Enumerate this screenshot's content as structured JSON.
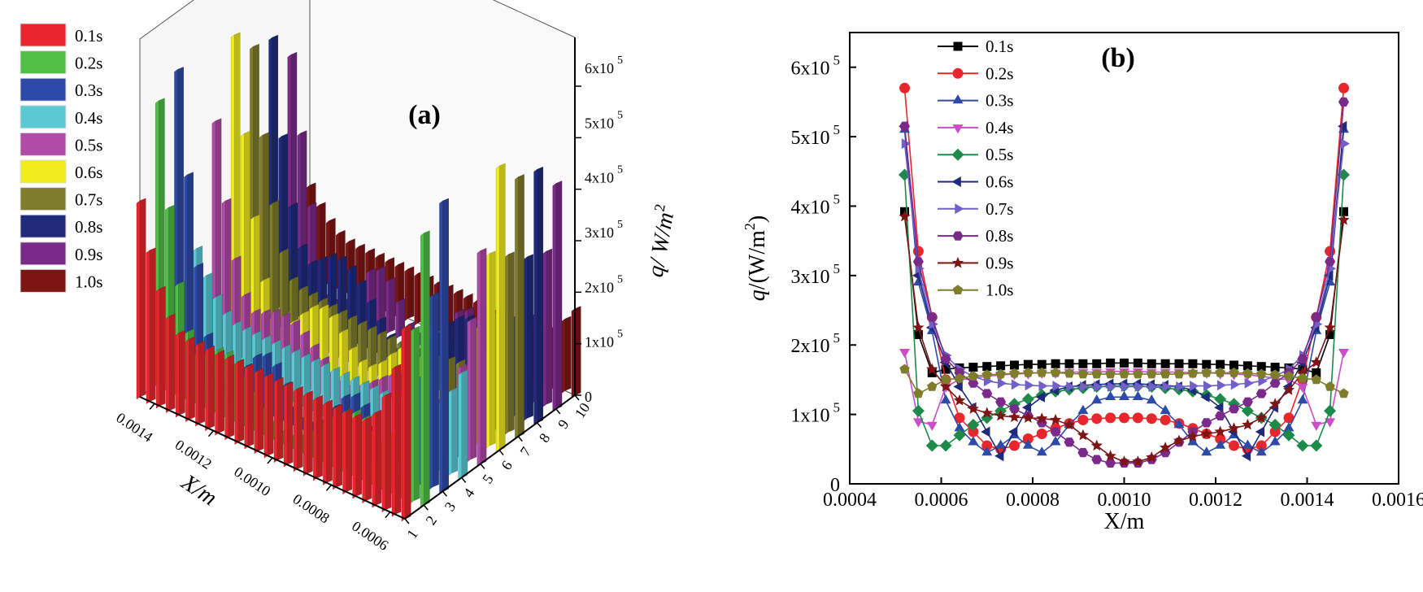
{
  "chart_data": [
    {
      "type": "bar",
      "panel_label": "(a)",
      "series_legend": [
        "0.1s",
        "0.2s",
        "0.3s",
        "0.4s",
        "0.5s",
        "0.6s",
        "0.7s",
        "0.8s",
        "0.9s",
        "1.0s"
      ],
      "colors": [
        "#e8262b",
        "#4fbf45",
        "#2e4aa8",
        "#5bc9d4",
        "#b14aa8",
        "#f0ec1e",
        "#7f7d2c",
        "#1f2a7c",
        "#7a2a88",
        "#7d1515"
      ],
      "xlabel": "X/m",
      "x_ticks": [
        "0.0006",
        "0.0008",
        "0.0010",
        "0.0012",
        "0.0014"
      ],
      "depth_ticks": [
        "1",
        "2",
        "3",
        "4",
        "5",
        "6",
        "7",
        "8",
        "9",
        "10"
      ],
      "zlabel_prefix": "q/ W/m",
      "zlabel_sup": "2",
      "z_ticks": [
        {
          "base": "0",
          "exp": ""
        },
        {
          "base": "1x10",
          "exp": "5"
        },
        {
          "base": "2x10",
          "exp": "5"
        },
        {
          "base": "3x10",
          "exp": "5"
        },
        {
          "base": "4x10",
          "exp": "5"
        },
        {
          "base": "5x10",
          "exp": "5"
        },
        {
          "base": "6x10",
          "exp": "5"
        }
      ],
      "zlim": [
        0,
        600000
      ]
    },
    {
      "type": "line",
      "panel_label": "(b)",
      "xlabel": "X/m",
      "ylabel_prefix": "q/(W/m",
      "ylabel_sup": "2",
      "ylabel_suffix": ")",
      "xlim": [
        0.0004,
        0.0016
      ],
      "ylim": [
        0,
        650000
      ],
      "x_ticks": [
        "0.0004",
        "0.0006",
        "0.0008",
        "0.0010",
        "0.0012",
        "0.0014",
        "0.0016"
      ],
      "x_tick_values": [
        0.0004,
        0.0006,
        0.0008,
        0.001,
        0.0012,
        0.0014,
        0.0016
      ],
      "y_ticks": [
        {
          "base": "0",
          "exp": "",
          "value": 0
        },
        {
          "base": "1x10",
          "exp": "5",
          "value": 100000
        },
        {
          "base": "2x10",
          "exp": "5",
          "value": 200000
        },
        {
          "base": "3x10",
          "exp": "5",
          "value": 300000
        },
        {
          "base": "4x10",
          "exp": "5",
          "value": 400000
        },
        {
          "base": "5x10",
          "exp": "5",
          "value": 500000
        },
        {
          "base": "6x10",
          "exp": "5",
          "value": 600000
        }
      ],
      "x": [
        0.00052,
        0.00055,
        0.00058,
        0.00061,
        0.00064,
        0.00067,
        0.0007,
        0.00073,
        0.00076,
        0.00079,
        0.00082,
        0.00085,
        0.00088,
        0.00091,
        0.00094,
        0.00097,
        0.001,
        0.00103,
        0.00106,
        0.00109,
        0.00112,
        0.00115,
        0.00118,
        0.00121,
        0.00124,
        0.00127,
        0.0013,
        0.00133,
        0.00136,
        0.00139,
        0.00142,
        0.00145,
        0.00148
      ],
      "series": [
        {
          "name": "0.1s",
          "color": "#000000",
          "marker": "square",
          "values": [
            392000,
            215000,
            160000,
            165000,
            167000,
            168000,
            169000,
            170000,
            171000,
            172000,
            172000,
            173000,
            173000,
            173000,
            173000,
            174000,
            174000,
            174000,
            173000,
            173000,
            173000,
            173000,
            172000,
            172000,
            171000,
            170000,
            169000,
            168000,
            167000,
            165000,
            160000,
            215000,
            392000
          ]
        },
        {
          "name": "0.2s",
          "color": "#e8262b",
          "marker": "circle",
          "values": [
            570000,
            335000,
            240000,
            150000,
            95000,
            75000,
            55000,
            50000,
            55000,
            65000,
            72000,
            80000,
            87000,
            92000,
            94000,
            95000,
            95000,
            95000,
            94000,
            92000,
            87000,
            80000,
            72000,
            65000,
            55000,
            50000,
            55000,
            75000,
            95000,
            150000,
            240000,
            335000,
            570000
          ]
        },
        {
          "name": "0.3s",
          "color": "#2e4aa8",
          "marker": "triangle-up",
          "values": [
            510000,
            290000,
            220000,
            120000,
            80000,
            60000,
            45000,
            55000,
            70000,
            55000,
            45000,
            60000,
            85000,
            105000,
            120000,
            125000,
            125000,
            125000,
            120000,
            105000,
            85000,
            60000,
            45000,
            55000,
            70000,
            55000,
            45000,
            60000,
            80000,
            120000,
            220000,
            290000,
            510000
          ]
        },
        {
          "name": "0.4s",
          "color": "#c84fc8",
          "marker": "triangle-down",
          "values": [
            190000,
            90000,
            85000,
            140000,
            150000,
            152000,
            155000,
            157000,
            158000,
            159000,
            160000,
            160000,
            161000,
            161000,
            161000,
            162000,
            162000,
            162000,
            161000,
            161000,
            161000,
            160000,
            160000,
            159000,
            158000,
            157000,
            155000,
            152000,
            150000,
            140000,
            85000,
            90000,
            190000
          ]
        },
        {
          "name": "0.5s",
          "color": "#1e8a4a",
          "marker": "diamond",
          "values": [
            445000,
            105000,
            55000,
            55000,
            70000,
            85000,
            95000,
            105000,
            115000,
            122000,
            128000,
            133000,
            136000,
            138000,
            140000,
            141000,
            141000,
            141000,
            140000,
            138000,
            136000,
            133000,
            128000,
            122000,
            115000,
            105000,
            95000,
            85000,
            70000,
            55000,
            55000,
            105000,
            445000
          ]
        },
        {
          "name": "0.6s",
          "color": "#1f2a7c",
          "marker": "triangle-left",
          "values": [
            515000,
            300000,
            225000,
            175000,
            140000,
            110000,
            75000,
            40000,
            75000,
            110000,
            125000,
            135000,
            140000,
            142000,
            143000,
            144000,
            144000,
            144000,
            143000,
            142000,
            140000,
            135000,
            125000,
            110000,
            75000,
            40000,
            75000,
            110000,
            140000,
            175000,
            225000,
            300000,
            515000
          ]
        },
        {
          "name": "0.7s",
          "color": "#7060c8",
          "marker": "triangle-right",
          "values": [
            490000,
            310000,
            230000,
            185000,
            165000,
            155000,
            148000,
            145000,
            143000,
            142000,
            141000,
            141000,
            140000,
            140000,
            140000,
            140000,
            140000,
            140000,
            140000,
            140000,
            140000,
            141000,
            141000,
            142000,
            143000,
            145000,
            148000,
            155000,
            165000,
            185000,
            230000,
            310000,
            490000
          ]
        },
        {
          "name": "0.8s",
          "color": "#7a2a88",
          "marker": "hexagon",
          "values": [
            515000,
            320000,
            240000,
            180000,
            160000,
            145000,
            130000,
            118000,
            108000,
            98000,
            88000,
            75000,
            60000,
            45000,
            35000,
            30000,
            30000,
            30000,
            35000,
            45000,
            60000,
            75000,
            88000,
            98000,
            108000,
            118000,
            130000,
            145000,
            160000,
            180000,
            240000,
            320000,
            550000
          ]
        },
        {
          "name": "0.9s",
          "color": "#7d1515",
          "marker": "star",
          "values": [
            385000,
            225000,
            165000,
            140000,
            120000,
            108000,
            102000,
            98000,
            96000,
            95000,
            94000,
            92000,
            85000,
            70000,
            55000,
            40000,
            32000,
            32000,
            38000,
            52000,
            62000,
            68000,
            72000,
            75000,
            80000,
            85000,
            95000,
            115000,
            135000,
            160000,
            175000,
            225000,
            380000
          ]
        },
        {
          "name": "1.0s",
          "color": "#7f7d2c",
          "marker": "pentagon",
          "values": [
            165000,
            130000,
            140000,
            150000,
            152000,
            155000,
            157000,
            158000,
            159000,
            160000,
            160000,
            160000,
            159000,
            158000,
            158000,
            158000,
            158000,
            158000,
            158000,
            158000,
            158000,
            159000,
            160000,
            160000,
            160000,
            159000,
            158000,
            157000,
            155000,
            152000,
            150000,
            140000,
            130000
          ]
        }
      ]
    }
  ]
}
